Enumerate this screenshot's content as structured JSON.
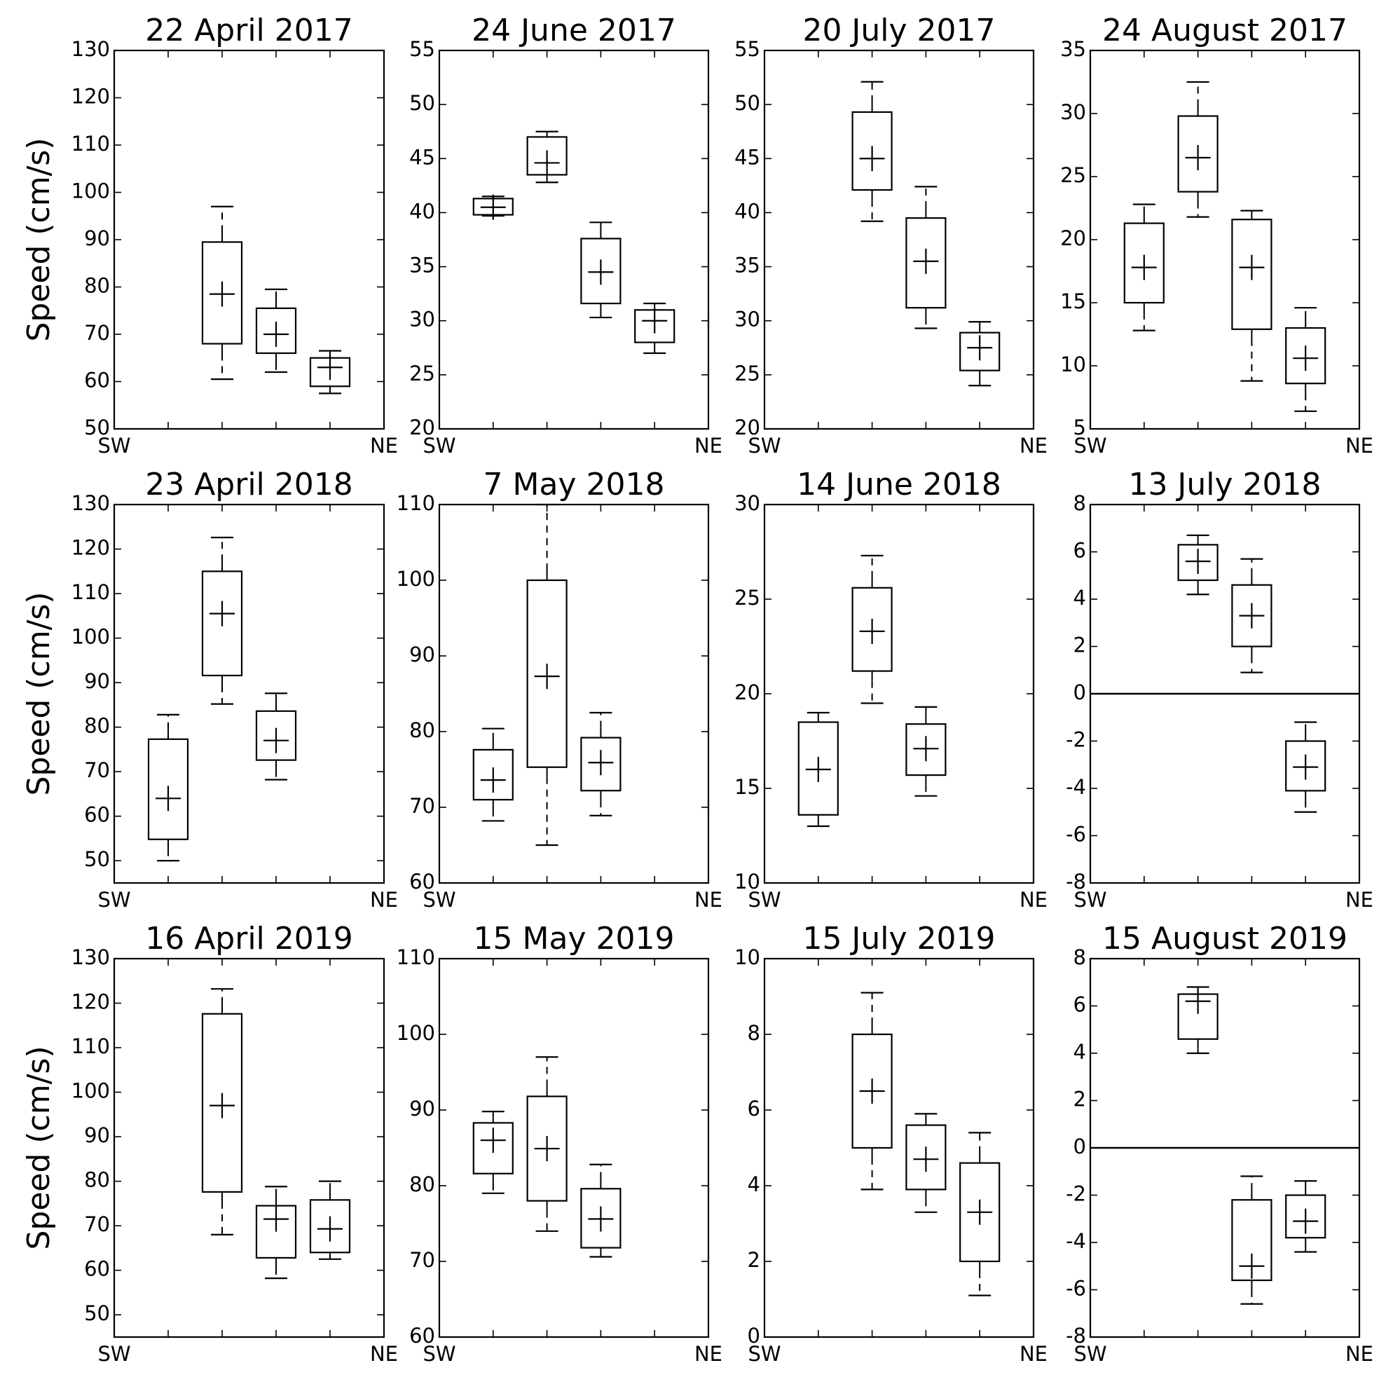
{
  "chart_data": {
    "type": "box",
    "ylabel": "Speed (cm/s)",
    "x_end_labels": [
      "SW",
      "NE"
    ],
    "panels": [
      {
        "title": "22 April 2017",
        "ylim": [
          50,
          130
        ],
        "yticks": [
          50,
          60,
          70,
          80,
          90,
          100,
          110,
          120,
          130
        ],
        "zero_line": false,
        "boxes": [
          {
            "slot": 2,
            "whisker_low": 60.5,
            "q1": 68,
            "q3": 89.5,
            "whisker_high": 97,
            "mean": 78.5
          },
          {
            "slot": 3,
            "whisker_low": 62,
            "q1": 66,
            "q3": 75.5,
            "whisker_high": 79.5,
            "mean": 70
          },
          {
            "slot": 4,
            "whisker_low": 57.5,
            "q1": 59,
            "q3": 65,
            "whisker_high": 66.5,
            "mean": 63
          }
        ]
      },
      {
        "title": "24 June 2017",
        "ylim": [
          20,
          55
        ],
        "yticks": [
          20,
          25,
          30,
          35,
          40,
          45,
          50,
          55
        ],
        "zero_line": false,
        "boxes": [
          {
            "slot": 1,
            "whisker_low": 39.7,
            "q1": 39.8,
            "q3": 41.3,
            "whisker_high": 41.5,
            "mean": 40.5
          },
          {
            "slot": 2,
            "whisker_low": 42.8,
            "q1": 43.5,
            "q3": 47,
            "whisker_high": 47.5,
            "mean": 44.6
          },
          {
            "slot": 3,
            "whisker_low": 30.3,
            "q1": 31.6,
            "q3": 37.6,
            "whisker_high": 39.1,
            "mean": 34.5
          },
          {
            "slot": 4,
            "whisker_low": 27,
            "q1": 28,
            "q3": 31,
            "whisker_high": 31.6,
            "mean": 30
          }
        ]
      },
      {
        "title": "20 July 2017",
        "ylim": [
          20,
          55
        ],
        "yticks": [
          20,
          25,
          30,
          35,
          40,
          45,
          50,
          55
        ],
        "zero_line": false,
        "boxes": [
          {
            "slot": 2,
            "whisker_low": 39.2,
            "q1": 42.1,
            "q3": 49.3,
            "whisker_high": 52.1,
            "mean": 45
          },
          {
            "slot": 3,
            "whisker_low": 29.3,
            "q1": 31.2,
            "q3": 39.5,
            "whisker_high": 42.4,
            "mean": 35.5
          },
          {
            "slot": 4,
            "whisker_low": 24,
            "q1": 25.4,
            "q3": 28.9,
            "whisker_high": 29.9,
            "mean": 27.5
          }
        ]
      },
      {
        "title": "24 August 2017",
        "ylim": [
          5,
          35
        ],
        "yticks": [
          5,
          10,
          15,
          20,
          25,
          30,
          35
        ],
        "zero_line": false,
        "boxes": [
          {
            "slot": 1,
            "whisker_low": 12.8,
            "q1": 15,
            "q3": 21.3,
            "whisker_high": 22.8,
            "mean": 17.8
          },
          {
            "slot": 2,
            "whisker_low": 21.8,
            "q1": 23.8,
            "q3": 29.8,
            "whisker_high": 32.5,
            "mean": 26.5
          },
          {
            "slot": 3,
            "whisker_low": 8.8,
            "q1": 12.9,
            "q3": 21.6,
            "whisker_high": 22.3,
            "mean": 17.8
          },
          {
            "slot": 4,
            "whisker_low": 6.4,
            "q1": 8.6,
            "q3": 13,
            "whisker_high": 14.6,
            "mean": 10.6
          }
        ]
      },
      {
        "title": "23 April 2018",
        "ylim": [
          45,
          130
        ],
        "yticks": [
          50,
          60,
          70,
          80,
          90,
          100,
          110,
          120,
          130
        ],
        "zero_line": false,
        "boxes": [
          {
            "slot": 1,
            "whisker_low": 50,
            "q1": 54.8,
            "q3": 77.3,
            "whisker_high": 82.8,
            "mean": 64
          },
          {
            "slot": 2,
            "whisker_low": 85.2,
            "q1": 91.6,
            "q3": 115,
            "whisker_high": 122.6,
            "mean": 105.5
          },
          {
            "slot": 3,
            "whisker_low": 68.2,
            "q1": 72.6,
            "q3": 83.6,
            "whisker_high": 87.6,
            "mean": 77
          }
        ]
      },
      {
        "title": "7 May 2018",
        "ylim": [
          60,
          110
        ],
        "yticks": [
          60,
          70,
          80,
          90,
          100,
          110
        ],
        "zero_line": false,
        "boxes": [
          {
            "slot": 1,
            "whisker_low": 68.2,
            "q1": 71,
            "q3": 77.6,
            "whisker_high": 80.4,
            "mean": 73.6
          },
          {
            "slot": 2,
            "whisker_low": 65,
            "q1": 75.3,
            "q3": 100,
            "whisker_high": 110,
            "mean": 87.3
          },
          {
            "slot": 3,
            "whisker_low": 68.9,
            "q1": 72.2,
            "q3": 79.2,
            "whisker_high": 82.5,
            "mean": 75.9
          }
        ]
      },
      {
        "title": "14 June 2018",
        "ylim": [
          10,
          30
        ],
        "yticks": [
          10,
          15,
          20,
          25,
          30
        ],
        "zero_line": false,
        "boxes": [
          {
            "slot": 1,
            "whisker_low": 13,
            "q1": 13.6,
            "q3": 18.5,
            "whisker_high": 19,
            "mean": 16
          },
          {
            "slot": 2,
            "whisker_low": 19.5,
            "q1": 21.2,
            "q3": 25.6,
            "whisker_high": 27.3,
            "mean": 23.3
          },
          {
            "slot": 3,
            "whisker_low": 14.6,
            "q1": 15.7,
            "q3": 18.4,
            "whisker_high": 19.3,
            "mean": 17.1
          }
        ]
      },
      {
        "title": "13 July 2018",
        "ylim": [
          -8,
          8
        ],
        "yticks": [
          -8,
          -6,
          -4,
          -2,
          0,
          2,
          4,
          6,
          8
        ],
        "zero_line": true,
        "boxes": [
          {
            "slot": 2,
            "whisker_low": 4.2,
            "q1": 4.8,
            "q3": 6.3,
            "whisker_high": 6.7,
            "mean": 5.6
          },
          {
            "slot": 3,
            "whisker_low": 0.9,
            "q1": 2,
            "q3": 4.6,
            "whisker_high": 5.7,
            "mean": 3.3
          },
          {
            "slot": 4,
            "whisker_low": -5,
            "q1": -4.1,
            "q3": -2,
            "whisker_high": -1.2,
            "mean": -3.1
          }
        ]
      },
      {
        "title": "16 April 2019",
        "ylim": [
          45,
          130
        ],
        "yticks": [
          50,
          60,
          70,
          80,
          90,
          100,
          110,
          120,
          130
        ],
        "zero_line": false,
        "boxes": [
          {
            "slot": 2,
            "whisker_low": 68,
            "q1": 77.6,
            "q3": 117.6,
            "whisker_high": 123.2,
            "mean": 97
          },
          {
            "slot": 3,
            "whisker_low": 58.2,
            "q1": 62.8,
            "q3": 74.5,
            "whisker_high": 78.8,
            "mean": 71.5
          },
          {
            "slot": 4,
            "whisker_low": 62.5,
            "q1": 64,
            "q3": 75.8,
            "whisker_high": 80,
            "mean": 69.3
          }
        ]
      },
      {
        "title": "15 May 2019",
        "ylim": [
          60,
          110
        ],
        "yticks": [
          60,
          70,
          80,
          90,
          100,
          110
        ],
        "zero_line": false,
        "boxes": [
          {
            "slot": 1,
            "whisker_low": 79,
            "q1": 81.6,
            "q3": 88.3,
            "whisker_high": 89.8,
            "mean": 86
          },
          {
            "slot": 2,
            "whisker_low": 74,
            "q1": 78,
            "q3": 91.8,
            "whisker_high": 97,
            "mean": 84.9
          },
          {
            "slot": 3,
            "whisker_low": 70.6,
            "q1": 71.8,
            "q3": 79.6,
            "whisker_high": 82.8,
            "mean": 75.6
          }
        ]
      },
      {
        "title": "15 July 2019",
        "ylim": [
          0,
          10
        ],
        "yticks": [
          0,
          2,
          4,
          6,
          8,
          10
        ],
        "zero_line": false,
        "boxes": [
          {
            "slot": 2,
            "whisker_low": 3.9,
            "q1": 5,
            "q3": 8,
            "whisker_high": 9.1,
            "mean": 6.5
          },
          {
            "slot": 3,
            "whisker_low": 3.3,
            "q1": 3.9,
            "q3": 5.6,
            "whisker_high": 5.9,
            "mean": 4.7
          },
          {
            "slot": 4,
            "whisker_low": 1.1,
            "q1": 2,
            "q3": 4.6,
            "whisker_high": 5.4,
            "mean": 3.3
          }
        ]
      },
      {
        "title": "15 August 2019",
        "ylim": [
          -8,
          8
        ],
        "yticks": [
          -8,
          -6,
          -4,
          -2,
          0,
          2,
          4,
          6,
          8
        ],
        "zero_line": true,
        "boxes": [
          {
            "slot": 2,
            "whisker_low": 4,
            "q1": 4.6,
            "q3": 6.5,
            "whisker_high": 6.8,
            "mean": 6.2
          },
          {
            "slot": 3,
            "whisker_low": -6.6,
            "q1": -5.6,
            "q3": -2.2,
            "whisker_high": -1.2,
            "mean": -5
          },
          {
            "slot": 4,
            "whisker_low": -4.4,
            "q1": -3.8,
            "q3": -2,
            "whisker_high": -1.4,
            "mean": -3.1
          }
        ]
      }
    ]
  }
}
